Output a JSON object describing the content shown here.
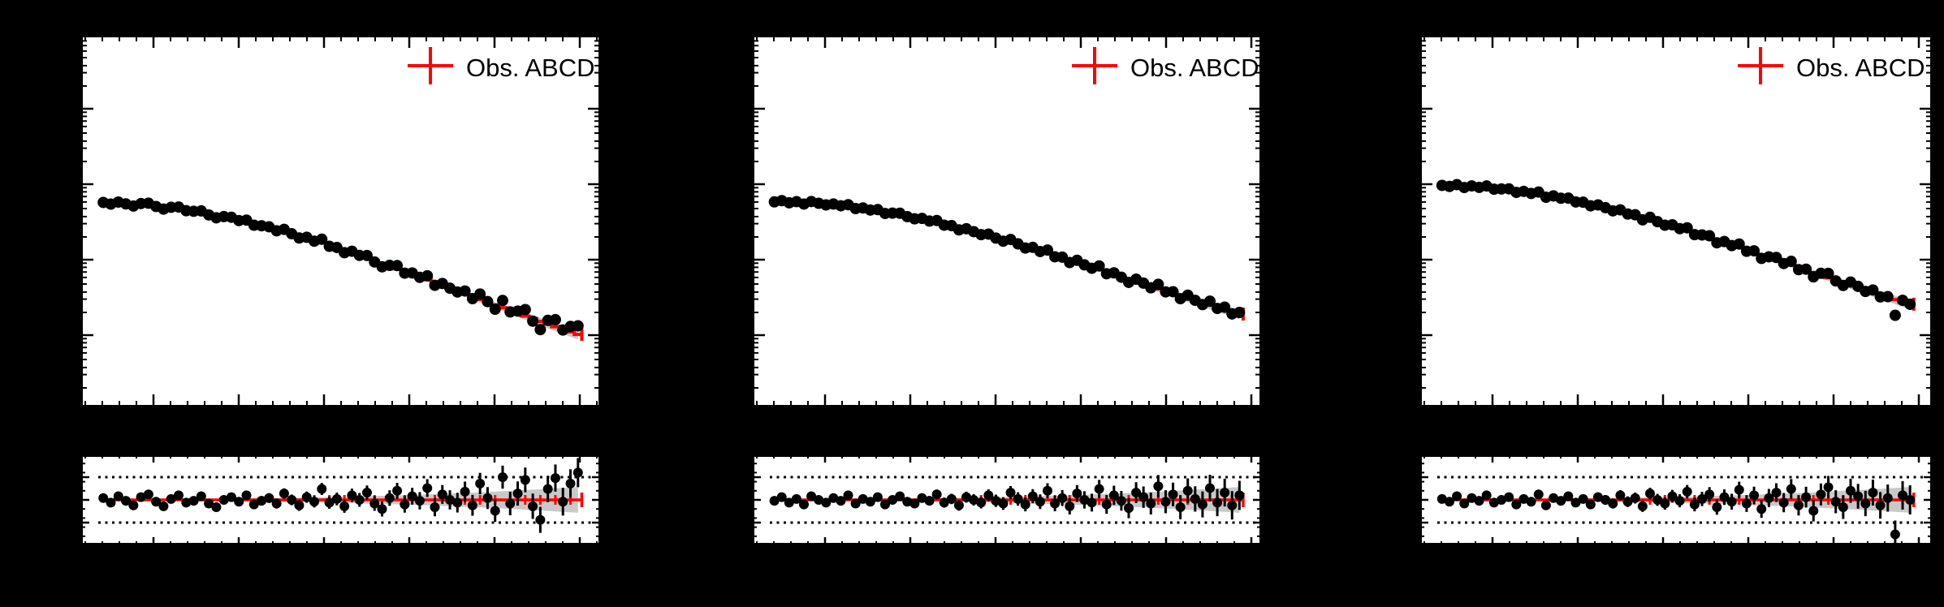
{
  "figure": {
    "colors": {
      "background": "#000000",
      "panel": "#ffffff",
      "frame": "#000000",
      "fit_red": "#ff0000",
      "band_gray": "#c9c9c9",
      "points": "#000000"
    },
    "legend": {
      "label": "Obs. ABCD",
      "marker": "red-cross"
    },
    "tick_labels_visible": false
  },
  "chart_data": [
    {
      "name": "panel-1",
      "type": "scatter",
      "legend": "Obs. ABCD",
      "x_scale": "linear",
      "y_scale": "log",
      "y_unit": "arbitrary units (axis labels not visible)",
      "ylim_log10": [
        0.98,
        -3.96
      ],
      "fit": {
        "log10_start": -1.25,
        "log10_delta": -1.74,
        "shape_poly": [
          1.8,
          -0.8
        ]
      },
      "x_frac": {
        "start": 0.044,
        "end": 0.956,
        "n": 64
      },
      "rel_err": {
        "base": 0.035,
        "growth": 0.125,
        "power": 1.8
      },
      "band_halfwidth": {
        "base": 0.012,
        "growth": 0.13,
        "power": 2.6
      },
      "ratio_panel": {
        "center": 1.0,
        "dotted_lines": [
          0.75,
          1.25
        ],
        "ylim": [
          0.5,
          1.5
        ]
      },
      "ratio_to_fit": [
        1.02,
        0.97,
        1.04,
        0.99,
        0.94,
        1.03,
        1.06,
        0.98,
        0.93,
        1.01,
        1.05,
        0.97,
        0.99,
        1.04,
        0.96,
        0.92,
        1.0,
        1.03,
        0.98,
        1.05,
        0.95,
        0.99,
        1.02,
        0.96,
        1.07,
        1.0,
        0.94,
        1.03,
        0.98,
        1.12,
        0.97,
        1.01,
        0.93,
        1.05,
        1.0,
        1.08,
        0.96,
        0.9,
        1.02,
        1.1,
        0.95,
        1.04,
        0.99,
        1.13,
        0.92,
        1.06,
        1.0,
        0.97,
        1.09,
        0.94,
        1.18,
        1.02,
        0.88,
        1.25,
        0.96,
        1.07,
        1.22,
        0.93,
        0.78,
        1.12,
        1.24,
        0.98,
        1.18,
        1.3
      ]
    },
    {
      "name": "panel-2",
      "type": "scatter",
      "legend": "Obs. ABCD",
      "x_scale": "linear",
      "y_scale": "log",
      "y_unit": "arbitrary units (axis labels not visible)",
      "ylim_log10": [
        0.98,
        -3.96
      ],
      "fit": {
        "log10_start": -1.23,
        "log10_delta": -1.49,
        "shape_poly": [
          1.8,
          -0.8
        ]
      },
      "x_frac": {
        "start": 0.044,
        "end": 0.956,
        "n": 64
      },
      "rel_err": {
        "base": 0.035,
        "growth": 0.125,
        "power": 1.8
      },
      "band_halfwidth": {
        "base": 0.012,
        "growth": 0.13,
        "power": 2.6
      },
      "ratio_panel": {
        "center": 1.0,
        "dotted_lines": [
          0.75,
          1.25
        ],
        "ylim": [
          0.5,
          1.5
        ]
      },
      "ratio_to_fit": [
        0.99,
        1.03,
        0.97,
        1.01,
        0.95,
        1.04,
        1.0,
        0.97,
        1.02,
        0.99,
        1.05,
        0.96,
        1.01,
        0.98,
        1.03,
        0.95,
        1.0,
        1.04,
        0.98,
        0.96,
        1.02,
        0.99,
        1.06,
        0.97,
        1.01,
        0.94,
        1.03,
        1.0,
        0.97,
        1.05,
        0.99,
        0.96,
        1.08,
        1.01,
        0.95,
        1.04,
        0.98,
        1.1,
        0.96,
        1.02,
        0.93,
        1.07,
        1.0,
        0.97,
        1.12,
        0.95,
        1.05,
        0.99,
        0.91,
        1.08,
        1.03,
        0.96,
        1.15,
        0.98,
        1.06,
        0.92,
        1.1,
        1.01,
        0.95,
        1.13,
        0.97,
        1.08,
        0.94,
        1.05
      ]
    },
    {
      "name": "panel-3",
      "type": "scatter",
      "legend": "Obs. ABCD",
      "x_scale": "linear",
      "y_scale": "log",
      "y_unit": "arbitrary units (axis labels not visible)",
      "ylim_log10": [
        0.98,
        -3.96
      ],
      "fit": {
        "log10_start": -1.02,
        "log10_delta": -1.57,
        "shape_poly": [
          1.8,
          -0.8
        ]
      },
      "x_frac": {
        "start": 0.044,
        "end": 0.956,
        "n": 64
      },
      "rel_err": {
        "base": 0.035,
        "growth": 0.125,
        "power": 1.8
      },
      "band_halfwidth": {
        "base": 0.012,
        "growth": 0.13,
        "power": 2.6
      },
      "ratio_panel": {
        "center": 1.0,
        "dotted_lines": [
          0.75,
          1.25
        ],
        "ylim": [
          0.5,
          1.5
        ]
      },
      "ratio_to_fit": [
        1.01,
        0.98,
        1.04,
        0.96,
        1.02,
        0.99,
        1.05,
        0.97,
        1.0,
        1.03,
        0.95,
        1.01,
        0.98,
        1.06,
        0.94,
        1.02,
        0.99,
        1.04,
        0.97,
        1.01,
        0.95,
        1.03,
        1.0,
        0.96,
        1.05,
        0.98,
        1.02,
        0.93,
        1.07,
        1.0,
        0.96,
        1.04,
        0.99,
        1.09,
        0.95,
        1.01,
        1.06,
        0.92,
        1.03,
        0.98,
        1.11,
        0.96,
        1.05,
        0.9,
        1.02,
        1.08,
        0.97,
        1.12,
        0.94,
        1.03,
        0.88,
        1.06,
        1.14,
        0.98,
        0.92,
        1.1,
        1.04,
        0.96,
        1.08,
        0.94,
        1.02,
        0.62,
        1.05,
        1.0
      ]
    }
  ]
}
